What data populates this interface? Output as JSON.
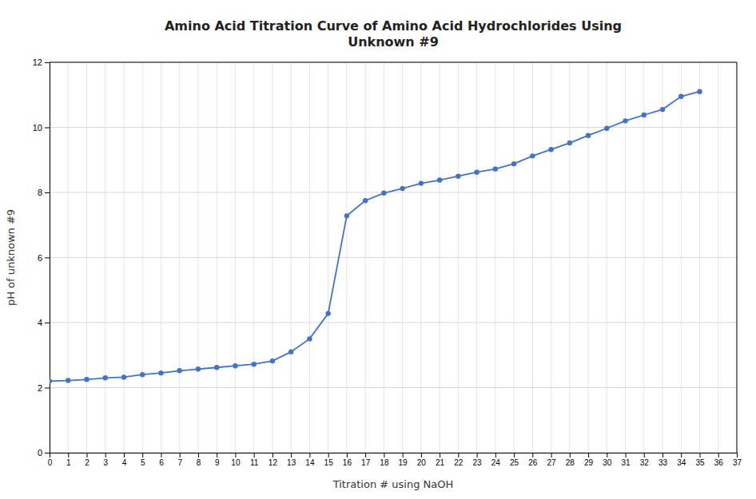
{
  "chart_data": {
    "type": "line",
    "title": "Amino Acid Titration Curve of Amino Acid Hydrochlorides Using\nUnknown #9",
    "x_label": "Titration # using NaOH",
    "y_label": "pH of unknown #9",
    "x": [
      0,
      1,
      2,
      3,
      4,
      5,
      6,
      7,
      8,
      9,
      10,
      11,
      12,
      13,
      14,
      15,
      16,
      17,
      18,
      19,
      20,
      21,
      22,
      23,
      24,
      25,
      26,
      27,
      28,
      29,
      30,
      31,
      32,
      33,
      34,
      35
    ],
    "values": [
      2.2,
      2.22,
      2.25,
      2.3,
      2.32,
      2.4,
      2.45,
      2.52,
      2.57,
      2.62,
      2.67,
      2.72,
      2.82,
      3.1,
      3.5,
      4.28,
      7.28,
      7.75,
      7.98,
      8.12,
      8.28,
      8.38,
      8.5,
      8.62,
      8.72,
      8.88,
      9.12,
      9.32,
      9.52,
      9.75,
      9.97,
      10.2,
      10.38,
      10.55,
      10.95,
      11.1
    ],
    "color": "#4472c4",
    "marker": "circle",
    "xlim": [
      0,
      37
    ],
    "ylim": [
      0,
      12
    ],
    "xticks": [
      0,
      1,
      2,
      3,
      4,
      5,
      6,
      7,
      8,
      9,
      10,
      11,
      12,
      13,
      14,
      15,
      16,
      17,
      18,
      19,
      20,
      21,
      22,
      23,
      24,
      25,
      26,
      27,
      28,
      29,
      30,
      31,
      32,
      33,
      34,
      35,
      36,
      37
    ],
    "yticks": [
      0,
      2,
      4,
      6,
      8,
      10,
      12
    ],
    "grid": true
  }
}
